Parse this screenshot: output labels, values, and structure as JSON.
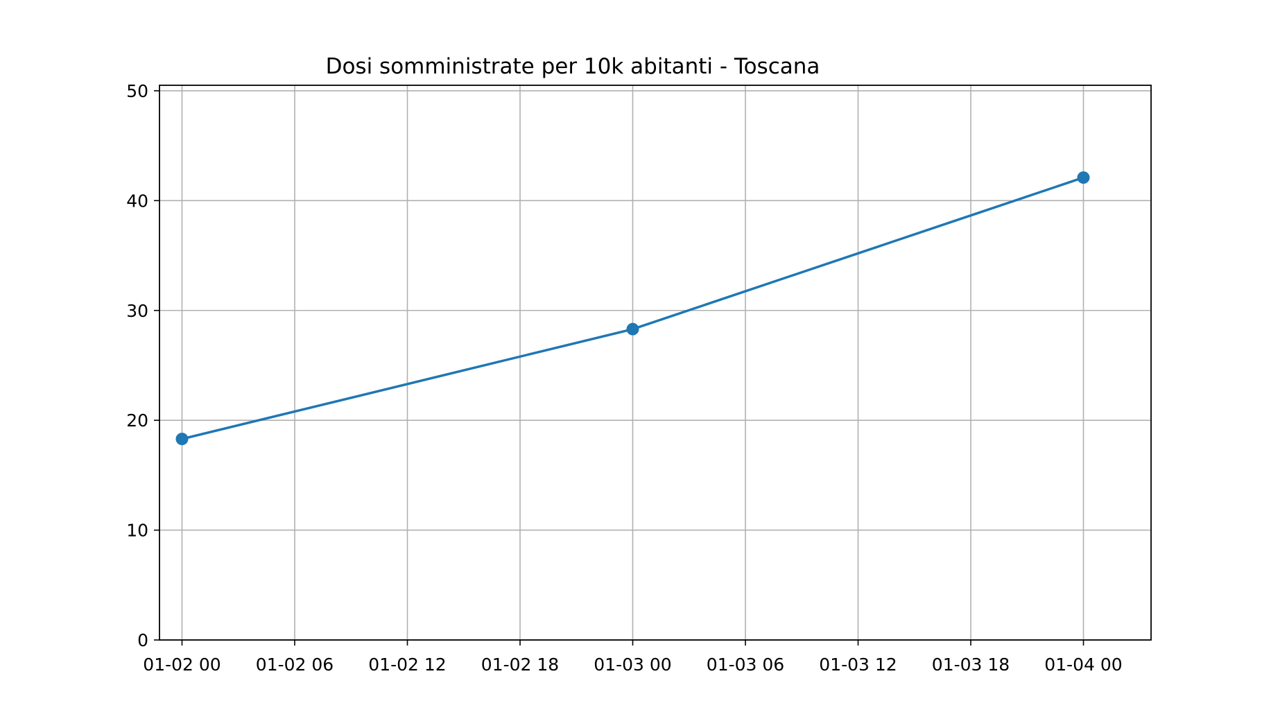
{
  "chart_data": {
    "type": "line",
    "title": "Dosi somministrate per 10k abitanti - Toscana",
    "xlabel": "",
    "ylabel": "",
    "x_tick_labels": [
      "01-02 00",
      "01-02 06",
      "01-02 12",
      "01-02 18",
      "01-03 00",
      "01-03 06",
      "01-03 12",
      "01-03 18",
      "01-04 00"
    ],
    "y_tick_labels": [
      "0",
      "10",
      "20",
      "30",
      "40",
      "50"
    ],
    "ylim": [
      0,
      50.5
    ],
    "xlim_hours": [
      -1.2,
      51.6
    ],
    "grid": true,
    "legend": "none",
    "series": [
      {
        "color": "#1f77b4",
        "marker": "circle",
        "points": [
          {
            "x": "01-02 00",
            "y": 18.3
          },
          {
            "x": "01-03 00",
            "y": 28.3
          },
          {
            "x": "01-04 00",
            "y": 42.1
          }
        ]
      }
    ]
  }
}
